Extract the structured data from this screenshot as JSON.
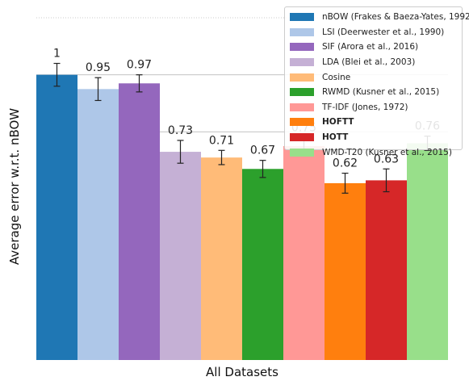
{
  "chart_data": {
    "type": "bar",
    "xlabel": "All Datasets",
    "ylabel": "Average error w.r.t. nBOW",
    "ylim": [
      0,
      1.2
    ],
    "grid": true,
    "legend_position": "top-right",
    "series": [
      {
        "name": "nBOW (Frakes & Baeza-Yates, 1992)",
        "value": 1,
        "label": "1",
        "error": 0.04,
        "color": "#1f77b4",
        "bold": false
      },
      {
        "name": "LSI (Deerwester et al., 1990)",
        "value": 0.95,
        "label": "0.95",
        "error": 0.04,
        "color": "#aec7e8",
        "bold": false
      },
      {
        "name": "SIF (Arora et al., 2016)",
        "value": 0.97,
        "label": "0.97",
        "error": 0.03,
        "color": "#9467bd",
        "bold": false
      },
      {
        "name": "LDA (Blei et al., 2003)",
        "value": 0.73,
        "label": "0.73",
        "error": 0.04,
        "color": "#c5b0d5",
        "bold": false
      },
      {
        "name": "Cosine",
        "value": 0.71,
        "label": "0.71",
        "error": 0.025,
        "color": "#ffbb78",
        "bold": false
      },
      {
        "name": "RWMD (Kusner et al., 2015)",
        "value": 0.67,
        "label": "0.67",
        "error": 0.03,
        "color": "#2ca02c",
        "bold": false
      },
      {
        "name": "TF-IDF (Jones, 1972)",
        "value": 0.75,
        "label": "0.75",
        "error": 0.03,
        "color": "#ff9896",
        "bold": false
      },
      {
        "name": "HOFTT",
        "value": 0.62,
        "label": "0.62",
        "error": 0.035,
        "color": "#ff7f0e",
        "bold": true
      },
      {
        "name": "HOTT",
        "value": 0.63,
        "label": "0.63",
        "error": 0.04,
        "color": "#d62728",
        "bold": true
      },
      {
        "name": "WMD-T20 (Kusner et al., 2015)",
        "value": 0.76,
        "label": "0.76",
        "error": 0.025,
        "color": "#98df8a",
        "bold": false
      }
    ]
  }
}
